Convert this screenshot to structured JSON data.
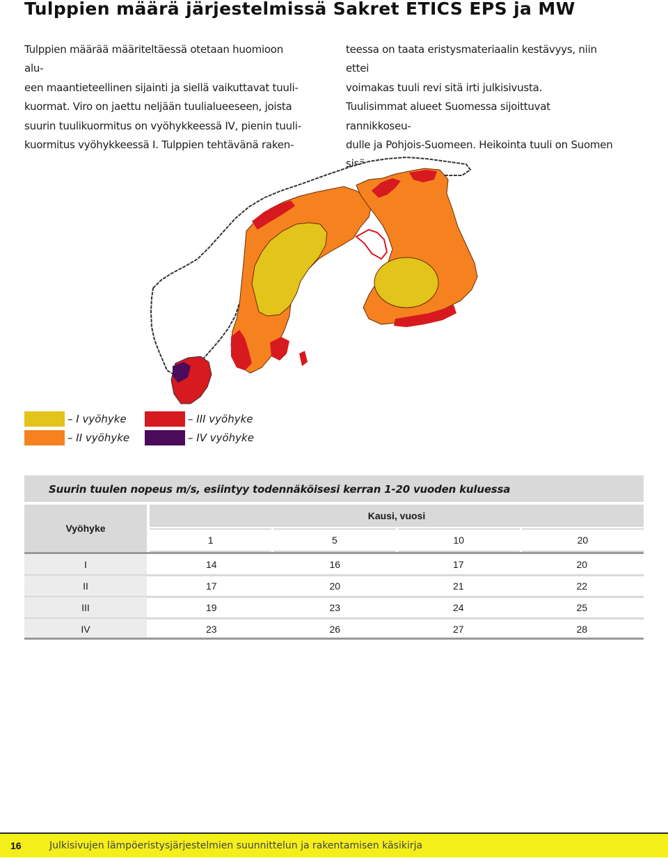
{
  "header": {
    "title": "Tulppien määrä järjestelmissä Sakret ETICS EPS ja MW"
  },
  "body_text": {
    "col1": [
      "Tulppien määrää määriteltäessä otetaan huomioon alu-",
      "een maantieteellinen sijainti ja siellä vaikuttavat tuuli-",
      "kuormat. Viro on jaettu neljään tuulialueeseen, joista",
      "suurin tuulikuormitus on vyöhykkeessä IV, pienin tuuli-",
      "kuormitus vyöhykkeessä I. Tulppien tehtävänä raken-"
    ],
    "col2": [
      "teessa on taata eristysmateriaalin kestävyys, niin ettei",
      "voimakas tuuli revi sitä irti julkisivusta.",
      "Tuulisimmat alueet Suomessa sijoittuvat rannikkoseu-",
      "dulle ja Pohjois-Suomeen. Heikointa tuuli on Suomen",
      "sisäosissa."
    ]
  },
  "map": {
    "zone_colors": {
      "I": "#e3c41a",
      "II": "#f5821f",
      "III": "#d71920",
      "IV": "#4b0a5a"
    }
  },
  "legend": {
    "items": [
      {
        "label": "– I vyöhyke",
        "color": "#e3c41a"
      },
      {
        "label": "– II vyöhyke",
        "color": "#f5821f"
      },
      {
        "label": "– III vyöhyke",
        "color": "#d71920"
      },
      {
        "label": "– IV vyöhyke",
        "color": "#4b0a5a"
      }
    ]
  },
  "table": {
    "title": "Suurin tuulen nopeus m/s, esiintyy todennäköisesi kerran 1-20 vuoden kuluessa",
    "zone_header": "Vyöhyke",
    "period_header": "Kausi, vuosi",
    "periods": [
      "1",
      "5",
      "10",
      "20"
    ],
    "rows": [
      {
        "zone": "I",
        "values": [
          "14",
          "16",
          "17",
          "20"
        ]
      },
      {
        "zone": "II",
        "values": [
          "17",
          "20",
          "21",
          "22"
        ]
      },
      {
        "zone": "III",
        "values": [
          "19",
          "23",
          "24",
          "25"
        ]
      },
      {
        "zone": "IV",
        "values": [
          "23",
          "26",
          "27",
          "28"
        ]
      }
    ]
  },
  "footer": {
    "page_number": "16",
    "text": "Julkisivujen lämpöeristysjärjestelmien suunnittelun ja rakentamisen käsikirja",
    "bg_color": "#f4ef1a"
  }
}
